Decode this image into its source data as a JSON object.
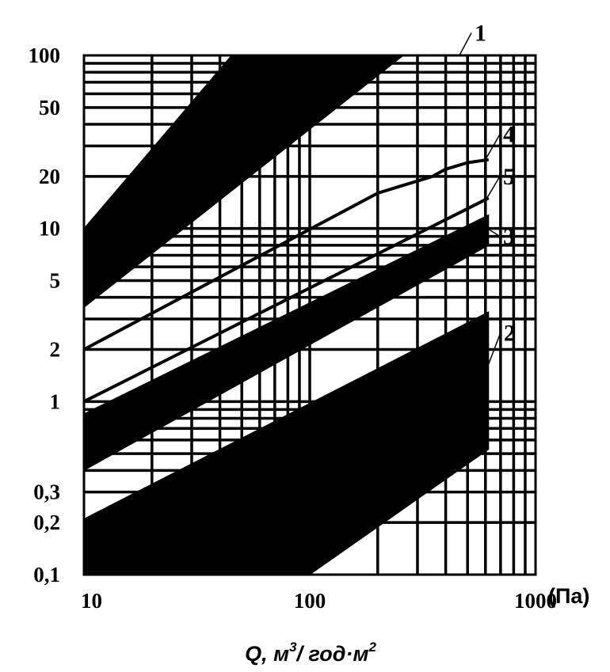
{
  "chart_data": {
    "type": "area",
    "title": "",
    "x_unit_label": "(Па)",
    "xlabel": {
      "main": "Q, м",
      "sup1": "3",
      "mid": "/ год·м",
      "sup2": "2"
    },
    "ylabel": "",
    "x_scale": "log",
    "y_scale": "log",
    "xlim": [
      10,
      1000
    ],
    "ylim": [
      0.1,
      100
    ],
    "x_ticks": [
      {
        "value": 10,
        "label": "10"
      },
      {
        "value": 100,
        "label": "100"
      },
      {
        "value": 1000,
        "label": "1000"
      }
    ],
    "y_ticks": [
      {
        "value": 0.1,
        "label": "0,1"
      },
      {
        "value": 0.2,
        "label": "0,2"
      },
      {
        "value": 0.3,
        "label": "0,3"
      },
      {
        "value": 1,
        "label": "1"
      },
      {
        "value": 2,
        "label": "2"
      },
      {
        "value": 5,
        "label": "5"
      },
      {
        "value": 10,
        "label": "10"
      },
      {
        "value": 20,
        "label": "20"
      },
      {
        "value": 50,
        "label": "50"
      },
      {
        "value": 100,
        "label": "100"
      }
    ],
    "grid": true,
    "legend": "none",
    "series": [
      {
        "label": "1",
        "kind": "band",
        "upper": [
          [
            10,
            10
          ],
          [
            45,
            100
          ]
        ],
        "lower": [
          [
            10,
            3.5
          ],
          [
            260,
            100
          ]
        ],
        "callout": [
          [
            460,
            100
          ],
          [
            520,
            135
          ]
        ]
      },
      {
        "label": "2",
        "kind": "band",
        "upper": [
          [
            10,
            0.21
          ],
          [
            620,
            3.3
          ]
        ],
        "lower": [
          [
            10,
            0.1
          ],
          [
            100,
            0.1
          ],
          [
            620,
            0.53
          ]
        ],
        "callout": [
          [
            620,
            1.65
          ],
          [
            700,
            2.5
          ]
        ]
      },
      {
        "label": "3",
        "kind": "band",
        "upper": [
          [
            10,
            0.85
          ],
          [
            620,
            12
          ]
        ],
        "lower": [
          [
            10,
            0.4
          ],
          [
            620,
            8
          ]
        ],
        "callout": [
          [
            620,
            9.9
          ],
          [
            695,
            9
          ]
        ]
      },
      {
        "label": "4",
        "kind": "line",
        "points": [
          [
            10,
            2
          ],
          [
            200,
            16
          ],
          [
            350,
            20
          ],
          [
            400,
            22
          ],
          [
            500,
            24
          ],
          [
            620,
            25
          ]
        ],
        "callout": [
          [
            600,
            25
          ],
          [
            695,
            35
          ]
        ]
      },
      {
        "label": "5",
        "kind": "line",
        "points": [
          [
            10,
            1
          ],
          [
            620,
            15
          ]
        ],
        "callout": [
          [
            600,
            14.5
          ],
          [
            695,
            20
          ]
        ]
      }
    ]
  }
}
